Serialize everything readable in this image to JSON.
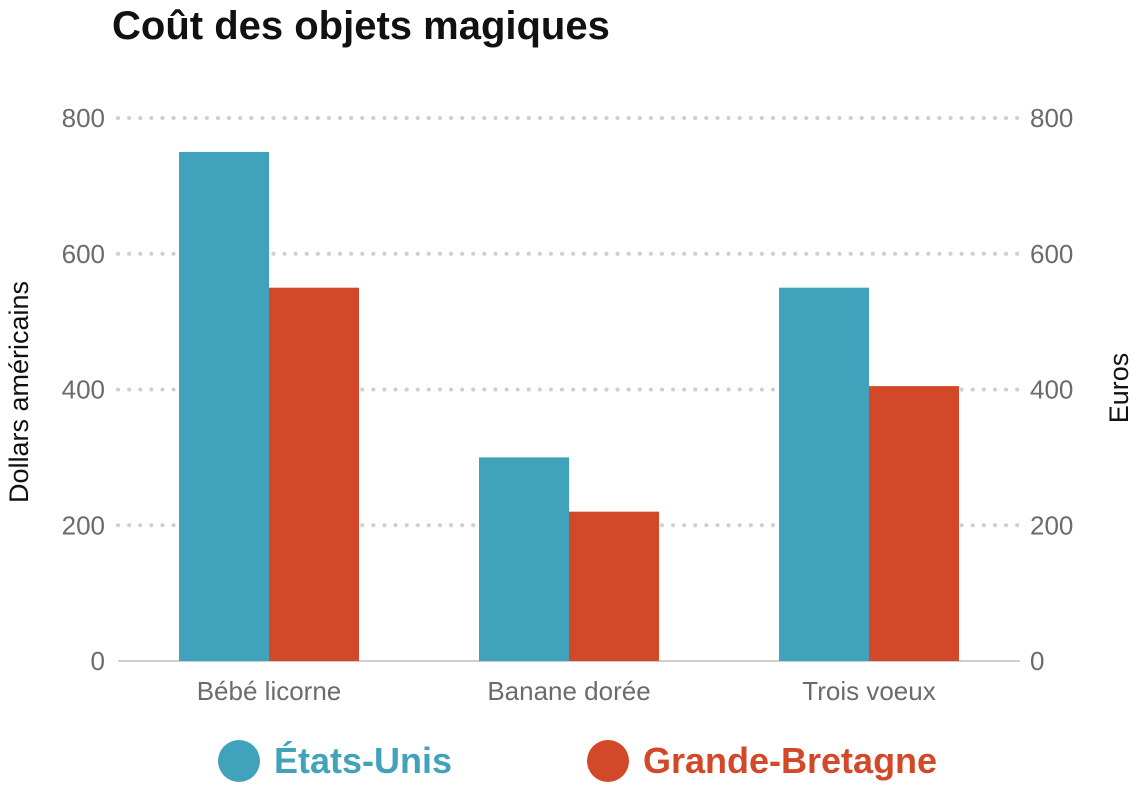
{
  "chart_data": {
    "type": "bar",
    "title": "Coût des objets magiques",
    "categories": [
      "Bébé licorne",
      "Banane dorée",
      "Trois voeux"
    ],
    "series": [
      {
        "name": "États-Unis",
        "color": "#41a3bb",
        "values": [
          750,
          300,
          550
        ]
      },
      {
        "name": "Grande-Bretagne",
        "color": "#d24829",
        "values": [
          550,
          220,
          405
        ]
      }
    ],
    "ylabel": "Dollars américains",
    "y2label": "Euros",
    "ylim": [
      0,
      800
    ],
    "y2lim": [
      0,
      800
    ],
    "yticks": [
      "0",
      "200",
      "400",
      "600",
      "800"
    ],
    "y2ticks": [
      "0",
      "200",
      "400",
      "600",
      "800"
    ],
    "grid": true,
    "legend_position": "bottom"
  }
}
